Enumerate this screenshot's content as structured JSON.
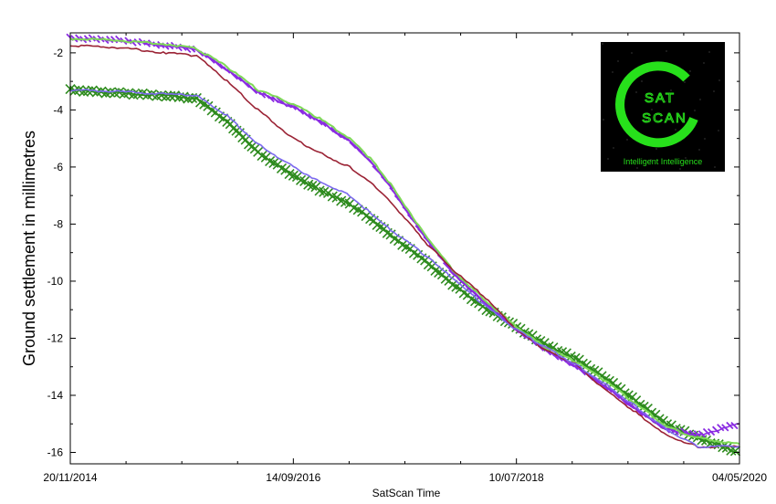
{
  "chart_data": {
    "type": "line",
    "title": "",
    "xlabel": "SatScan Time",
    "ylabel": "Ground settlement in millimetres",
    "x_ticks": [
      "20/11/2014",
      "14/09/2016",
      "10/07/2018",
      "04/05/2020"
    ],
    "x_range": [
      "20/11/2014",
      "04/05/2020"
    ],
    "ylim": [
      -16.4,
      -1.3
    ],
    "y_ticks": [
      -2,
      -4,
      -6,
      -8,
      -10,
      -12,
      -14,
      -16
    ],
    "grid": false,
    "logo": {
      "line1": "SAT",
      "line2": "SCAN",
      "tagline": "Intelligent Intelligence",
      "background": "#000000",
      "accent": "#27e01b"
    },
    "series": [
      {
        "color": "#7ed957",
        "marker": "none",
        "points": [
          [
            "20/11/2014",
            -1.5
          ],
          [
            "01/04/2015",
            -1.55
          ],
          [
            "01/09/2015",
            -1.7
          ],
          [
            "01/12/2015",
            -1.85
          ],
          [
            "01/03/2016",
            -2.5
          ],
          [
            "01/06/2016",
            -3.3
          ],
          [
            "14/09/2016",
            -3.8
          ],
          [
            "01/12/2016",
            -4.3
          ],
          [
            "01/03/2017",
            -5.0
          ],
          [
            "01/05/2017",
            -5.7
          ],
          [
            "01/07/2017",
            -6.6
          ],
          [
            "01/10/2017",
            -8.2
          ],
          [
            "01/01/2018",
            -9.6
          ],
          [
            "01/04/2018",
            -10.6
          ],
          [
            "10/07/2018",
            -11.6
          ],
          [
            "01/10/2018",
            -12.3
          ],
          [
            "01/01/2019",
            -12.8
          ],
          [
            "01/04/2019",
            -13.5
          ],
          [
            "01/07/2019",
            -14.3
          ],
          [
            "01/10/2019",
            -15.1
          ],
          [
            "01/01/2020",
            -15.5
          ],
          [
            "04/05/2020",
            -15.7
          ]
        ]
      },
      {
        "color": "#8a2be2",
        "marker": "diagonal-dash",
        "points": [
          [
            "20/11/2014",
            -1.5
          ],
          [
            "01/04/2015",
            -1.55
          ],
          [
            "01/09/2015",
            -1.75
          ],
          [
            "01/12/2015",
            -1.9
          ],
          [
            "01/03/2016",
            -2.6
          ],
          [
            "01/06/2016",
            -3.4
          ],
          [
            "14/09/2016",
            -3.9
          ],
          [
            "01/12/2016",
            -4.4
          ],
          [
            "01/03/2017",
            -5.1
          ],
          [
            "01/05/2017",
            -5.8
          ],
          [
            "01/07/2017",
            -6.7
          ],
          [
            "01/10/2017",
            -8.3
          ],
          [
            "01/01/2018",
            -9.7
          ],
          [
            "01/04/2018",
            -10.7
          ],
          [
            "10/07/2018",
            -11.7
          ],
          [
            "01/10/2018",
            -12.4
          ],
          [
            "01/01/2019",
            -13.0
          ],
          [
            "01/04/2019",
            -13.7
          ],
          [
            "01/07/2019",
            -14.5
          ],
          [
            "01/10/2019",
            -15.2
          ],
          [
            "01/01/2020",
            -15.4
          ],
          [
            "04/05/2020",
            -15.0
          ]
        ]
      },
      {
        "color": "#9b2335",
        "marker": "none",
        "points": [
          [
            "20/11/2014",
            -1.75
          ],
          [
            "01/04/2015",
            -1.8
          ],
          [
            "01/09/2015",
            -2.0
          ],
          [
            "01/12/2015",
            -2.1
          ],
          [
            "01/03/2016",
            -3.0
          ],
          [
            "01/06/2016",
            -4.0
          ],
          [
            "14/09/2016",
            -5.0
          ],
          [
            "01/12/2016",
            -5.5
          ],
          [
            "01/03/2017",
            -6.0
          ],
          [
            "01/05/2017",
            -6.5
          ],
          [
            "01/07/2017",
            -7.2
          ],
          [
            "01/10/2017",
            -8.5
          ],
          [
            "01/01/2018",
            -9.6
          ],
          [
            "01/04/2018",
            -10.5
          ],
          [
            "10/07/2018",
            -11.7
          ],
          [
            "01/10/2018",
            -12.4
          ],
          [
            "01/01/2019",
            -12.9
          ],
          [
            "01/04/2019",
            -13.8
          ],
          [
            "01/07/2019",
            -14.6
          ],
          [
            "01/10/2019",
            -15.4
          ],
          [
            "01/01/2020",
            -15.8
          ],
          [
            "04/05/2020",
            -15.8
          ]
        ]
      },
      {
        "color": "#7b68ee",
        "marker": "none",
        "points": [
          [
            "20/11/2014",
            -3.3
          ],
          [
            "01/04/2015",
            -3.35
          ],
          [
            "01/09/2015",
            -3.45
          ],
          [
            "01/12/2015",
            -3.5
          ],
          [
            "01/03/2016",
            -4.2
          ],
          [
            "01/06/2016",
            -5.2
          ],
          [
            "14/09/2016",
            -6.0
          ],
          [
            "01/12/2016",
            -6.5
          ],
          [
            "01/03/2017",
            -7.0
          ],
          [
            "01/05/2017",
            -7.6
          ],
          [
            "01/07/2017",
            -8.2
          ],
          [
            "01/10/2017",
            -9.0
          ],
          [
            "01/01/2018",
            -9.9
          ],
          [
            "01/04/2018",
            -10.8
          ],
          [
            "10/07/2018",
            -11.7
          ],
          [
            "01/10/2018",
            -12.3
          ],
          [
            "01/01/2019",
            -12.9
          ],
          [
            "01/04/2019",
            -13.6
          ],
          [
            "01/07/2019",
            -14.4
          ],
          [
            "01/10/2019",
            -15.2
          ],
          [
            "01/01/2020",
            -15.8
          ],
          [
            "04/05/2020",
            -15.8
          ]
        ]
      },
      {
        "color": "#2e8b1e",
        "marker": "x",
        "points": [
          [
            "20/11/2014",
            -3.3
          ],
          [
            "01/04/2015",
            -3.4
          ],
          [
            "01/09/2015",
            -3.5
          ],
          [
            "01/12/2015",
            -3.6
          ],
          [
            "01/03/2016",
            -4.4
          ],
          [
            "01/06/2016",
            -5.5
          ],
          [
            "14/09/2016",
            -6.3
          ],
          [
            "01/12/2016",
            -6.8
          ],
          [
            "01/03/2017",
            -7.3
          ],
          [
            "01/05/2017",
            -7.8
          ],
          [
            "01/07/2017",
            -8.4
          ],
          [
            "01/10/2017",
            -9.2
          ],
          [
            "01/01/2018",
            -10.1
          ],
          [
            "01/04/2018",
            -10.9
          ],
          [
            "10/07/2018",
            -11.6
          ],
          [
            "01/10/2018",
            -12.2
          ],
          [
            "01/01/2019",
            -12.7
          ],
          [
            "01/04/2019",
            -13.4
          ],
          [
            "01/07/2019",
            -14.2
          ],
          [
            "01/10/2019",
            -15.0
          ],
          [
            "01/01/2020",
            -15.5
          ],
          [
            "04/05/2020",
            -16.0
          ]
        ]
      }
    ]
  }
}
